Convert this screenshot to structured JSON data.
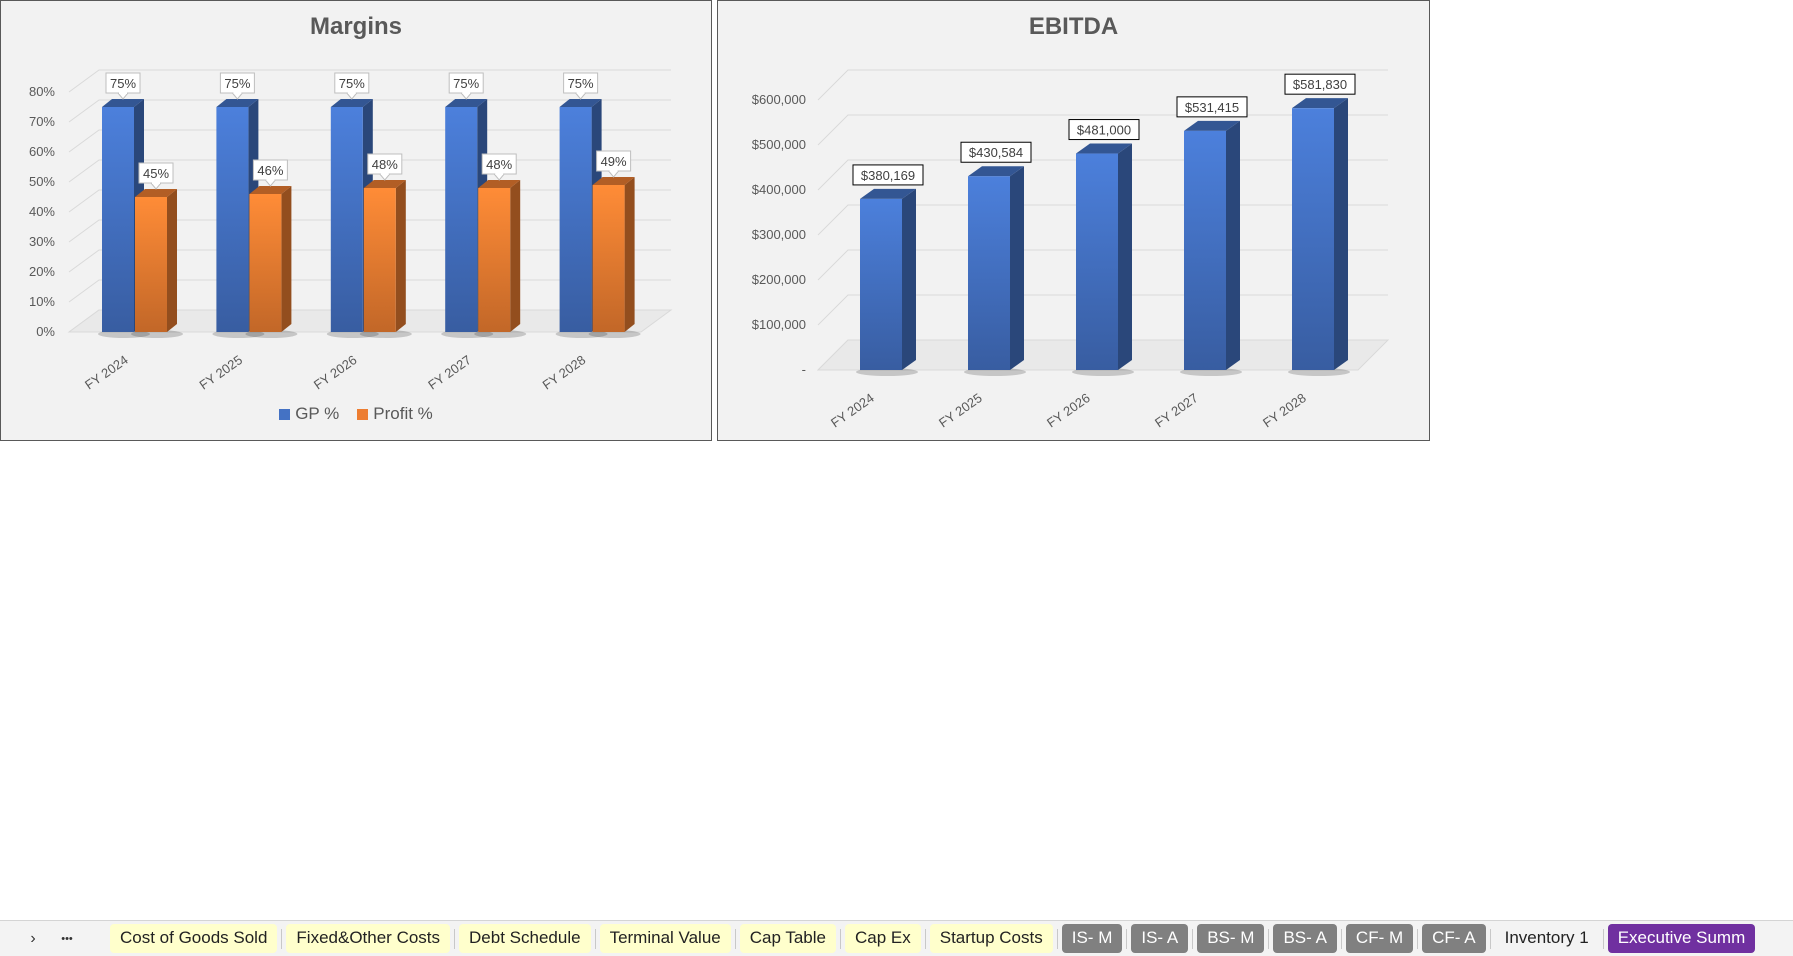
{
  "chart_data": [
    {
      "type": "bar",
      "title": "Margins",
      "categories": [
        "FY 2024",
        "FY 2025",
        "FY 2026",
        "FY 2027",
        "FY 2028"
      ],
      "series": [
        {
          "name": "GP %",
          "values": [
            75,
            75,
            75,
            75,
            75
          ],
          "labels": [
            "75%",
            "75%",
            "75%",
            "75%",
            "75%"
          ],
          "color": "#4472c4"
        },
        {
          "name": "Profit %",
          "values": [
            45,
            46,
            48,
            48,
            49
          ],
          "labels": [
            "45%",
            "46%",
            "48%",
            "48%",
            "49%"
          ],
          "color": "#ed7d31"
        }
      ],
      "yticks": [
        "0%",
        "10%",
        "20%",
        "30%",
        "40%",
        "50%",
        "60%",
        "70%",
        "80%"
      ],
      "ylim": [
        0,
        80
      ],
      "legend": "bottom",
      "grid": true,
      "style": "3d-column"
    },
    {
      "type": "bar",
      "title": "EBITDA",
      "categories": [
        "FY 2024",
        "FY 2025",
        "FY 2026",
        "FY 2027",
        "FY 2028"
      ],
      "series": [
        {
          "values": [
            380169,
            430584,
            481000,
            531415,
            581830
          ],
          "labels": [
            "$380,169",
            "$430,584",
            "$481,000",
            "$531,415",
            "$581,830"
          ],
          "color": "#4472c4"
        }
      ],
      "yticks": [
        "-",
        "$100,000",
        "$200,000",
        "$300,000",
        "$400,000",
        "$500,000",
        "$600,000"
      ],
      "ylim": [
        0,
        600000
      ],
      "legend": "none",
      "grid": true,
      "style": "3d-column"
    }
  ],
  "sheet_tabs": {
    "nav_next_icon": "chevron-right-icon",
    "more_icon": "ellipsis-icon",
    "nav_next_glyph": "›",
    "more_glyph": "•••",
    "tabs": [
      {
        "label": "Cost of Goods Sold",
        "color": "#ffffcc"
      },
      {
        "label": "Fixed&Other Costs",
        "color": "#ffffcc"
      },
      {
        "label": "Debt Schedule",
        "color": "#ffffcc"
      },
      {
        "label": "Terminal Value",
        "color": "#ffffcc"
      },
      {
        "label": "Cap Table",
        "color": "#ffffcc"
      },
      {
        "label": "Cap Ex",
        "color": "#ffffcc"
      },
      {
        "label": "Startup Costs",
        "color": "#ffffcc"
      },
      {
        "label": "IS- M",
        "color": "#808080"
      },
      {
        "label": "IS- A",
        "color": "#808080"
      },
      {
        "label": "BS- M",
        "color": "#808080"
      },
      {
        "label": "BS- A",
        "color": "#808080"
      },
      {
        "label": "CF- M",
        "color": "#808080"
      },
      {
        "label": "CF- A",
        "color": "#808080"
      },
      {
        "label": "Inventory 1",
        "color": "none"
      },
      {
        "label": "Executive Summ",
        "color": "#7030a0"
      }
    ]
  }
}
